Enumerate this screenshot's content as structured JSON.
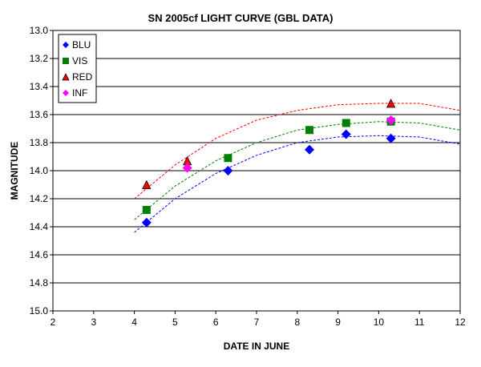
{
  "chart_data": {
    "type": "scatter",
    "title": "SN 2005cf LIGHT CURVE (GBL DATA)",
    "xlabel": "DATE IN JUNE",
    "ylabel": "MAGNITUDE",
    "xlim": [
      2,
      12
    ],
    "ylim": [
      13.0,
      15.0
    ],
    "y_inverted": true,
    "x_ticks": [
      2,
      3,
      4,
      5,
      6,
      7,
      8,
      9,
      10,
      11,
      12
    ],
    "y_ticks": [
      "13.0",
      "13.2",
      "13.4",
      "13.6",
      "13.8",
      "14.0",
      "14.2",
      "14.4",
      "14.6",
      "14.8",
      "15.0"
    ],
    "grid": "horizontal",
    "legend_position": "top-left",
    "series": [
      {
        "name": "BLU",
        "marker": "diamond",
        "color": "#0000ff",
        "x": [
          4.3,
          6.3,
          8.3,
          9.2,
          10.3
        ],
        "y": [
          14.37,
          14.0,
          13.85,
          13.74,
          13.77
        ]
      },
      {
        "name": "VIS",
        "marker": "square",
        "color": "#008000",
        "x": [
          4.3,
          5.3,
          6.3,
          8.3,
          9.2,
          10.3
        ],
        "y": [
          14.28,
          null,
          13.91,
          13.71,
          13.66,
          13.65
        ]
      },
      {
        "name": "RED",
        "marker": "triangle",
        "color": "#ff0000",
        "x": [
          4.3,
          5.3,
          10.3
        ],
        "y": [
          14.1,
          13.93,
          13.52
        ]
      },
      {
        "name": "INF",
        "marker": "diamond",
        "color": "#ff00ff",
        "x": [
          5.3,
          10.3
        ],
        "y": [
          13.98,
          13.64
        ]
      }
    ],
    "trendlines": [
      {
        "color": "#0000ff",
        "x": [
          4.0,
          5.0,
          6.0,
          7.0,
          8.0,
          9.0,
          10.0,
          11.0,
          12.0
        ],
        "y": [
          14.44,
          14.2,
          14.02,
          13.89,
          13.8,
          13.76,
          13.75,
          13.76,
          13.81
        ]
      },
      {
        "color": "#008000",
        "x": [
          4.0,
          5.0,
          6.0,
          7.0,
          8.0,
          9.0,
          10.0,
          11.0,
          12.0
        ],
        "y": [
          14.35,
          14.11,
          13.93,
          13.8,
          13.71,
          13.67,
          13.65,
          13.66,
          13.71
        ]
      },
      {
        "color": "#ff0000",
        "x": [
          4.0,
          5.0,
          6.0,
          7.0,
          8.0,
          9.0,
          10.0,
          11.0,
          12.0
        ],
        "y": [
          14.2,
          13.96,
          13.77,
          13.64,
          13.57,
          13.53,
          13.52,
          13.52,
          13.57
        ]
      }
    ]
  }
}
